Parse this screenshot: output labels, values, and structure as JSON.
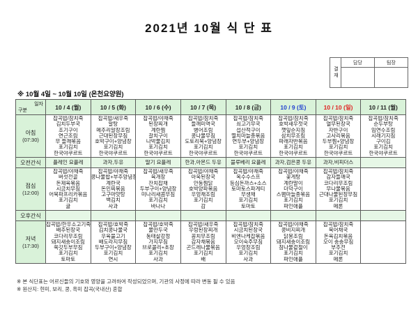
{
  "title": "2021년 10월 식 단 표",
  "approval": {
    "stamp_label": "결재",
    "roles": [
      "담당",
      "팀장"
    ]
  },
  "subtitle": "※ 10월 4일 ~ 10월 10일 (온천요양원)",
  "colors": {
    "header_green": "#d9f2d9",
    "snack_green": "#e6f7e6",
    "saturday_blue": "#1f3fd0",
    "sunday_red": "#e02020"
  },
  "table": {
    "corner": {
      "top": "일자",
      "bottom": "구분"
    },
    "dates": [
      {
        "label": "10 / 4 (월)",
        "type": "weekday"
      },
      {
        "label": "10 / 5 (화)",
        "type": "weekday"
      },
      {
        "label": "10 / 6 (수)",
        "type": "weekday"
      },
      {
        "label": "10 / 7 (목)",
        "type": "weekday"
      },
      {
        "label": "10 / 8 (금)",
        "type": "weekday"
      },
      {
        "label": "10 / 9 (토)",
        "type": "saturday"
      },
      {
        "label": "10 / 10 (일)",
        "type": "sunday"
      },
      {
        "label": "10 / 11 (월)",
        "type": "weekday"
      }
    ],
    "rows": [
      {
        "label": "아침",
        "time": "(07:30)",
        "kind": "meal",
        "cells": [
          [
            "잡곡밥/참치죽",
            "김치두부국",
            "조기구이",
            "연근조림",
            "무 들깨볶음",
            "포기김치",
            "한국야쿠르트"
          ],
          [
            "잡곡밥/새우죽",
            "알탕",
            "메추리알장조림",
            "근대된장무침",
            "호박구이+양념장",
            "포기김치",
            "한국야쿠르트"
          ],
          [
            "잡곡밥/야채죽",
            "된장찌개",
            "계란찜",
            "갈치구이",
            "나박물김치",
            "포기김치",
            "한국야쿠르트"
          ],
          [
            "잡곡밥/참치죽",
            "들깨미역국",
            "병어조림",
            "콩나물무침",
            "도토리묵+양념장",
            "포기김치",
            "한국야쿠르트"
          ],
          [
            "잡곡밥/참치죽",
            "쇠고기무국",
            "섭산적구이",
            "멸치마늘종볶음",
            "연두부+양념장",
            "포기김치",
            "한국야쿠르트"
          ],
          [
            "잡곡밥/참치죽",
            "호박새우젓국",
            "깻잎순지짐",
            "삼치무조림",
            "파래자반볶음",
            "포기김치",
            "한국야쿠르트"
          ],
          [
            "잡곡밥/참치죽",
            "열무된장국",
            "자반구이",
            "고사리볶음",
            "두부찜+양념장",
            "포기김치",
            "한국야쿠르트"
          ],
          [
            "잡곡밥/참치죽",
            "순두부탕",
            "임연수조림",
            "시래기지짐",
            "구이김",
            "포기김치",
            "한국야쿠르트"
          ]
        ]
      },
      {
        "label": "오전간식",
        "time": "",
        "kind": "snack",
        "cells": [
          [
            "플레인 요플레"
          ],
          [
            "과자,두유"
          ],
          [
            "딸기 요플레"
          ],
          [
            "한과,아몬드 두유"
          ],
          [
            "블루베리 요플레"
          ],
          [
            "과자,검은콩 두유"
          ],
          [
            "과자,비피더스"
          ],
          []
        ]
      },
      {
        "label": "점심",
        "time": "(12:00)",
        "kind": "meal",
        "cells": [
          [
            "잡곡밥/야채죽",
            "버섯전골",
            "돈제육볶음",
            "시금치무침",
            "어묵파프리카볶음",
            "포기김치",
            "귤"
          ],
          [
            "잡곡밥/야채죽",
            "콩나물밥+부추양념장",
            "계란국",
            "돈민찌볶음",
            "고구마맛탕",
            "백김치",
            "사과"
          ],
          [
            "잡곡밥/새우죽",
            "육개장",
            "잔치잡채",
            "두부구이+양념장",
            "미나리새콤무침",
            "포기김치",
            "바나나"
          ],
          [
            "잡곡밥/야채죽",
            "아욱된장국",
            "안동찜닭",
            "호박양파볶음",
            "우엉채조림",
            "포기김치",
            "감"
          ],
          [
            "잡곡밥/야채죽",
            "옥수수스프",
            "등심돈까스+소스",
            "토마토스파게티",
            "무생채",
            "포기김치",
            "토마토"
          ],
          [
            "잡곡밥/야채죽",
            "꽃게탕",
            "계란말이",
            "더덕구이",
            "스팸마늘종볶음",
            "포기김치",
            "파인애플"
          ],
          [
            "잡곡밥/참치죽",
            "감자들깨국",
            "코다리무조림",
            "무나물볶음",
            "근대나물된장무침",
            "포기김치",
            "메론"
          ],
          []
        ]
      },
      {
        "label": "오후간식",
        "time": "",
        "kind": "snack",
        "cells": [
          [],
          [],
          [],
          [],
          [],
          [],
          [],
          []
        ]
      },
      {
        "label": "저녁",
        "time": "(17:30)",
        "kind": "meal",
        "cells": [
          [
            "잡곡밥/한우소고기죽",
            "배추된장국",
            "코다리무조림",
            "돼지새송이조림",
            "쑥갓두부무침",
            "포기김치",
            "토마토"
          ],
          [
            "잡곡밥/호박죽",
            "김치콩나물국",
            "우육불고기",
            "배도라지무침",
            "두부구이+양념장",
            "포기김치",
            "연시"
          ],
          [
            "잡곡밥/호박죽",
            "물만두국",
            "동태살강정",
            "가지무침",
            "브로콜리+초장",
            "포기김치",
            "사과"
          ],
          [
            "잡곡밥/새우죽",
            "우렁된장찌개",
            "꽁치무조림",
            "감자채볶음",
            "곤드레나물볶음",
            "포기김치",
            "배"
          ],
          [
            "잡곡밥/참치죽",
            "시금치된장국",
            "비엔나케찹볶음",
            "오이숙주무침",
            "우엉장조림",
            "포기김치",
            "사과"
          ],
          [
            "잡곡밥/야채죽",
            "콩비지찌개",
            "닭봉조림",
            "돼지새송이조림",
            "참나물겉절이",
            "포기김치",
            "파인애플"
          ],
          [
            "잡곡밥/참치죽",
            "북어채국",
            "돈육김치볶음",
            "오이 송송무침",
            "부추전",
            "포기김치",
            "메론"
          ],
          []
        ]
      }
    ]
  },
  "footer": [
    "※ 본 식단표는 어르신들의 기호와 영양을 고려하여 작성되었으며, 기관의 사정에 따라 변동 될 수 있음",
    "※ 원산지: 현미, 보리, 콩, 흑미 잡곡(국내산) 혼합"
  ]
}
